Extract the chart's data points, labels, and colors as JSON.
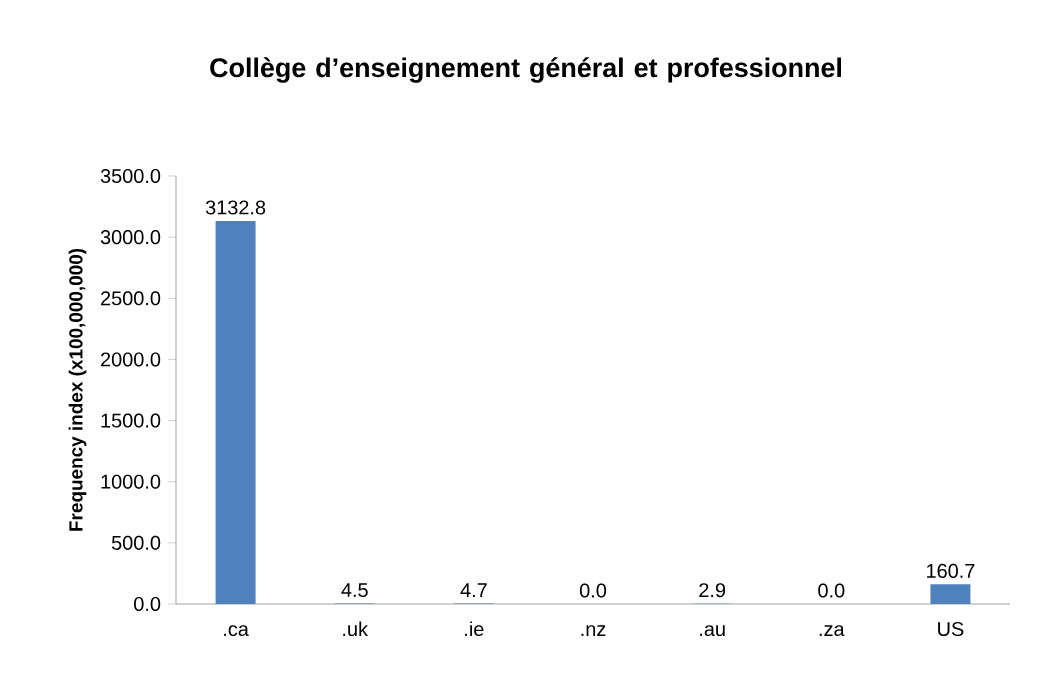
{
  "chart_data": {
    "type": "bar",
    "title": "Collège d’enseignement général et professionnel",
    "ylabel": "Frequency index (x100,000,000)",
    "categories": [
      ".ca",
      ".uk",
      ".ie",
      ".nz",
      ".au",
      ".za",
      "US"
    ],
    "values": [
      3132.8,
      4.5,
      4.7,
      0.0,
      2.9,
      0.0,
      160.7
    ],
    "value_labels": [
      "3132.8",
      "4.5",
      "4.7",
      "0.0",
      "2.9",
      "0.0",
      "160.7"
    ],
    "color": "#4f81bd",
    "ylim": [
      0,
      3500
    ],
    "yticks": [
      {
        "value": 0,
        "label": "0.0"
      },
      {
        "value": 500,
        "label": "500.0"
      },
      {
        "value": 1000,
        "label": "1000.0"
      },
      {
        "value": 1500,
        "label": "1500.0"
      },
      {
        "value": 2000,
        "label": "2000.0"
      },
      {
        "value": 2500,
        "label": "2500.0"
      },
      {
        "value": 3000,
        "label": "3000.0"
      },
      {
        "value": 3500,
        "label": "3500.0"
      }
    ],
    "grid": false
  }
}
